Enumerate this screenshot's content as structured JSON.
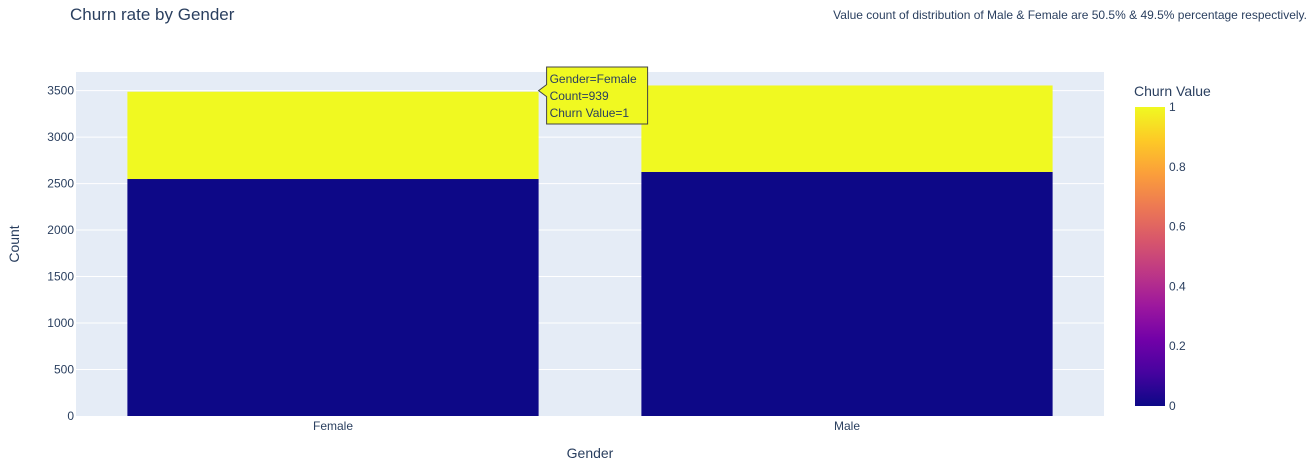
{
  "chart_data": {
    "type": "bar",
    "barmode": "stack",
    "title": "Churn rate by Gender",
    "annotation": "Value count of distribution of Male & Female are 50.5% & 49.5% percentage respectively.",
    "xlabel": "Gender",
    "ylabel": "Count",
    "categories": [
      "Female",
      "Male"
    ],
    "series": [
      {
        "churn_value": 0,
        "values": [
          2549,
          2625
        ],
        "color": "#0d0887"
      },
      {
        "churn_value": 1,
        "values": [
          939,
          930
        ],
        "color": "#f0f921"
      }
    ],
    "ylim": [
      0,
      3700
    ],
    "yticks": [
      0,
      500,
      1000,
      1500,
      2000,
      2500,
      3000,
      3500
    ],
    "grid": true,
    "plot_background": "#e5ecf6",
    "colorbar": {
      "title": "Churn Value",
      "range": [
        0,
        1
      ],
      "ticks": [
        "0",
        "0.2",
        "0.4",
        "0.6",
        "0.8",
        "1"
      ],
      "colors": [
        "#0d0887",
        "#46039f",
        "#7201a8",
        "#9c179e",
        "#bd3786",
        "#d8576b",
        "#ed7953",
        "#fb9f3a",
        "#fdca26",
        "#f0f921"
      ]
    },
    "hover": {
      "lines": [
        "Gender=Female",
        "Count=939",
        "Churn Value=1"
      ],
      "category": "Female",
      "series_index": 1,
      "background": "#f0f921"
    }
  }
}
